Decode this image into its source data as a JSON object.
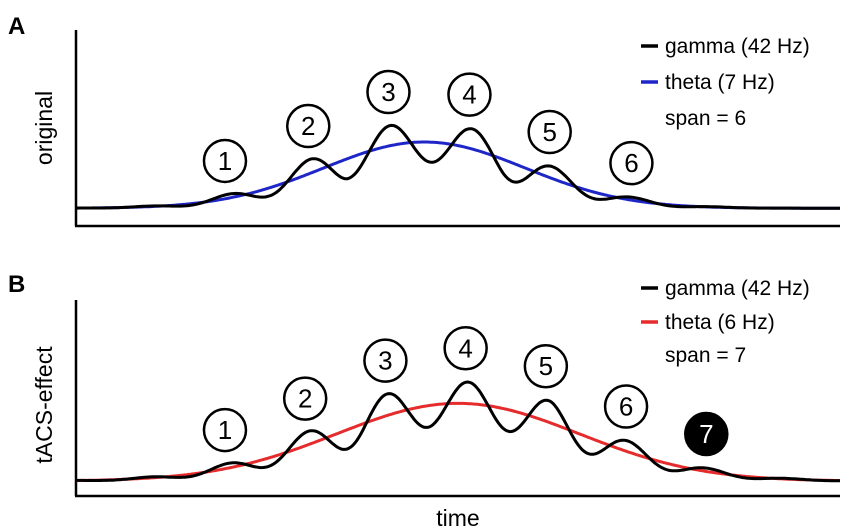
{
  "figure": {
    "xlabel": "time"
  },
  "chart_data": [
    {
      "panel": "A",
      "type": "line",
      "ylabel": "original",
      "legend": {
        "placement": "top-right",
        "entries": [
          {
            "label": "gamma (42 Hz)",
            "color": "#000000"
          },
          {
            "label": "theta (7 Hz)",
            "color": "#1f26c8"
          }
        ],
        "note": "span = 6"
      },
      "xlim": [
        0,
        1
      ],
      "ylim": [
        0,
        1
      ],
      "series": [
        {
          "name": "theta (7 Hz)",
          "color": "#1f26c8",
          "center": 0.456,
          "width": 0.44,
          "amplitude": 0.46,
          "baseline": 0.04
        },
        {
          "name": "gamma (42 Hz)",
          "color": "#000000",
          "riding_on": "theta (7 Hz)",
          "ripple_amplitude": 0.14,
          "ripple_period": 0.108,
          "ripple_phase_peak_x": 0.195
        }
      ],
      "peak_labels": [
        {
          "text": "1",
          "x": 0.195,
          "filled": false
        },
        {
          "text": "2",
          "x": 0.304,
          "filled": false
        },
        {
          "text": "3",
          "x": 0.409,
          "filled": false
        },
        {
          "text": "4",
          "x": 0.515,
          "filled": false
        },
        {
          "text": "5",
          "x": 0.62,
          "filled": false
        },
        {
          "text": "6",
          "x": 0.727,
          "filled": false
        }
      ]
    },
    {
      "panel": "B",
      "type": "line",
      "ylabel": "tACS-effect",
      "legend": {
        "placement": "top-right",
        "entries": [
          {
            "label": "gamma (42 Hz)",
            "color": "#000000"
          },
          {
            "label": "theta (6 Hz)",
            "color": "#e52b2b"
          }
        ],
        "note": "span = 7"
      },
      "xlim": [
        0,
        1
      ],
      "ylim": [
        0,
        1
      ],
      "series": [
        {
          "name": "theta (6 Hz)",
          "color": "#e52b2b",
          "center": 0.5,
          "width": 0.53,
          "amplitude": 0.54,
          "baseline": 0.02
        },
        {
          "name": "gamma (42 Hz)",
          "color": "#000000",
          "riding_on": "theta (6 Hz)",
          "ripple_amplitude": 0.15,
          "ripple_period": 0.106,
          "ripple_phase_peak_x": 0.195
        }
      ],
      "peak_labels": [
        {
          "text": "1",
          "x": 0.195,
          "filled": false
        },
        {
          "text": "2",
          "x": 0.3,
          "filled": false
        },
        {
          "text": "3",
          "x": 0.405,
          "filled": false
        },
        {
          "text": "4",
          "x": 0.51,
          "filled": false
        },
        {
          "text": "5",
          "x": 0.615,
          "filled": false
        },
        {
          "text": "6",
          "x": 0.72,
          "filled": false
        },
        {
          "text": "7",
          "x": 0.825,
          "filled": true
        }
      ]
    }
  ]
}
